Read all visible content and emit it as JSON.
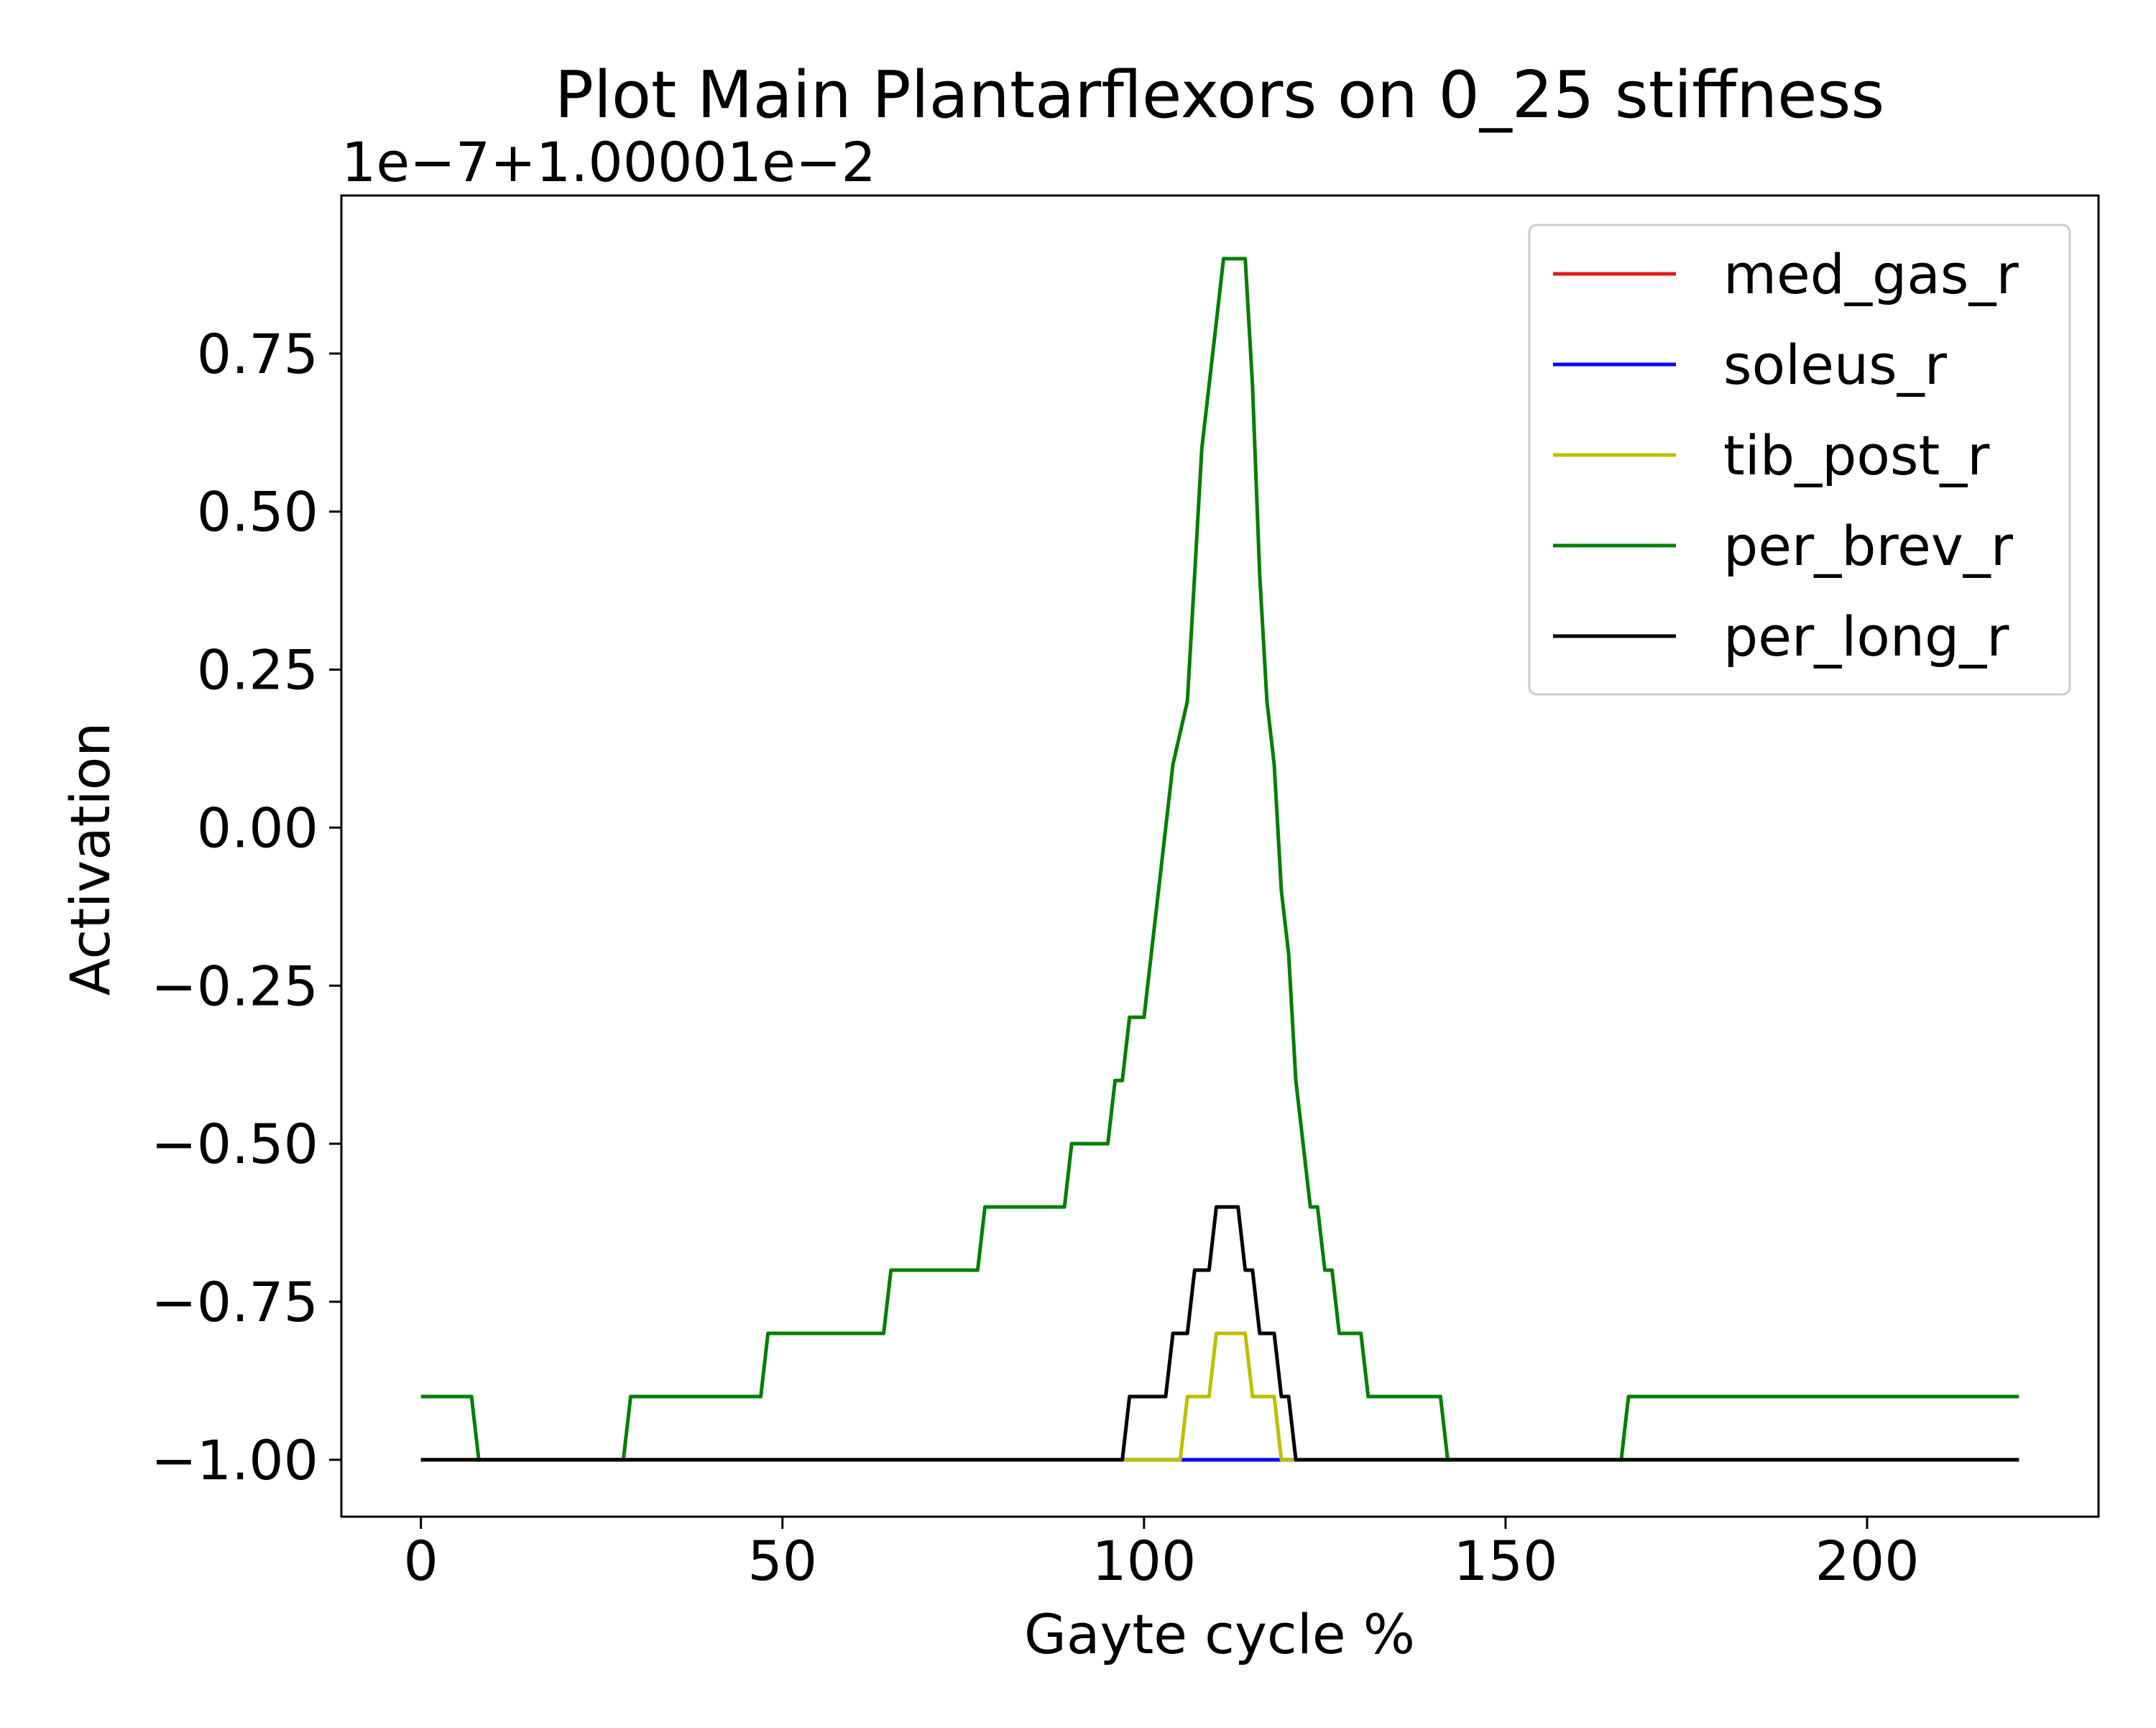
{
  "chart_data": {
    "type": "line",
    "title": "Plot Main Plantarflexors on 0_25 stiffness",
    "offset_label": "1e−7+1.00001e−2",
    "xlabel": "Gayte cycle %",
    "ylabel": "Activation",
    "xlim": [
      -11,
      232
    ],
    "ylim": [
      -1.09,
      1.0
    ],
    "x_ticks": [
      0,
      50,
      100,
      150,
      200
    ],
    "x_tick_labels": [
      "0",
      "50",
      "100",
      "150",
      "200"
    ],
    "y_ticks": [
      -1.0,
      -0.75,
      -0.5,
      -0.25,
      0.0,
      0.25,
      0.5,
      0.75
    ],
    "y_tick_labels": [
      "−1.00",
      "−0.75",
      "−0.50",
      "−0.25",
      "0.00",
      "0.25",
      "0.50",
      "0.75"
    ],
    "grid": false,
    "legend_position": "top-right",
    "series": [
      {
        "name": "med_gas_r",
        "color": "#e41a1c",
        "points": [
          [
            0,
            -1.0
          ],
          [
            221,
            -1.0
          ]
        ]
      },
      {
        "name": "soleus_r",
        "color": "#0000ff",
        "points": [
          [
            0,
            -1.0
          ],
          [
            221,
            -1.0
          ]
        ]
      },
      {
        "name": "tib_post_r",
        "color": "#bfbf00",
        "points": [
          [
            0,
            -1.0
          ],
          [
            98,
            -1.0
          ],
          [
            105,
            -1.0
          ],
          [
            106,
            -0.9
          ],
          [
            109,
            -0.9
          ],
          [
            110,
            -0.8
          ],
          [
            114,
            -0.8
          ],
          [
            115,
            -0.9
          ],
          [
            118,
            -0.9
          ],
          [
            119,
            -1.0
          ],
          [
            221,
            -1.0
          ]
        ]
      },
      {
        "name": "per_brev_r",
        "color": "#008000",
        "points": [
          [
            0,
            -0.9
          ],
          [
            7,
            -0.9
          ],
          [
            8,
            -1.0
          ],
          [
            28,
            -1.0
          ],
          [
            29,
            -0.9
          ],
          [
            47,
            -0.9
          ],
          [
            48,
            -0.8
          ],
          [
            64,
            -0.8
          ],
          [
            65,
            -0.7
          ],
          [
            77,
            -0.7
          ],
          [
            78,
            -0.6
          ],
          [
            89,
            -0.6
          ],
          [
            90,
            -0.5
          ],
          [
            95,
            -0.5
          ],
          [
            96,
            -0.4
          ],
          [
            97,
            -0.4
          ],
          [
            98,
            -0.3
          ],
          [
            100,
            -0.3
          ],
          [
            102,
            -0.1
          ],
          [
            104,
            0.1
          ],
          [
            106,
            0.2
          ],
          [
            107,
            0.4
          ],
          [
            108,
            0.6
          ],
          [
            110,
            0.8
          ],
          [
            111,
            0.9
          ],
          [
            114,
            0.9
          ],
          [
            115,
            0.7
          ],
          [
            116,
            0.4
          ],
          [
            117,
            0.2
          ],
          [
            118,
            0.1
          ],
          [
            119,
            -0.1
          ],
          [
            120,
            -0.2
          ],
          [
            121,
            -0.4
          ],
          [
            122,
            -0.5
          ],
          [
            123,
            -0.6
          ],
          [
            124,
            -0.6
          ],
          [
            125,
            -0.7
          ],
          [
            126,
            -0.7
          ],
          [
            127,
            -0.8
          ],
          [
            130,
            -0.8
          ],
          [
            131,
            -0.9
          ],
          [
            141,
            -0.9
          ],
          [
            142,
            -1.0
          ],
          [
            166,
            -1.0
          ],
          [
            167,
            -0.9
          ],
          [
            221,
            -0.9
          ]
        ]
      },
      {
        "name": "per_long_r",
        "color": "#000000",
        "points": [
          [
            0,
            -1.0
          ],
          [
            97,
            -1.0
          ],
          [
            98,
            -0.9
          ],
          [
            103,
            -0.9
          ],
          [
            104,
            -0.8
          ],
          [
            106,
            -0.8
          ],
          [
            107,
            -0.7
          ],
          [
            109,
            -0.7
          ],
          [
            110,
            -0.6
          ],
          [
            113,
            -0.6
          ],
          [
            114,
            -0.7
          ],
          [
            115,
            -0.7
          ],
          [
            116,
            -0.8
          ],
          [
            118,
            -0.8
          ],
          [
            119,
            -0.9
          ],
          [
            120,
            -0.9
          ],
          [
            121,
            -1.0
          ],
          [
            221,
            -1.0
          ]
        ]
      }
    ]
  }
}
